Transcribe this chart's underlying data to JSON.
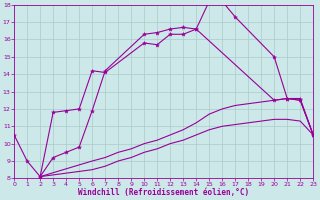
{
  "xlabel": "Windchill (Refroidissement éolien,°C)",
  "background_color": "#cce8e8",
  "grid_color": "#aacccc",
  "line_color": "#990099",
  "xlim": [
    0,
    23
  ],
  "ylim": [
    8,
    18
  ],
  "xticks": [
    0,
    1,
    2,
    3,
    4,
    5,
    6,
    7,
    8,
    9,
    10,
    11,
    12,
    13,
    14,
    15,
    16,
    17,
    18,
    19,
    20,
    21,
    22,
    23
  ],
  "yticks": [
    8,
    9,
    10,
    11,
    12,
    13,
    14,
    15,
    16,
    17,
    18
  ],
  "curve1_x": [
    0,
    1,
    2,
    3,
    4,
    5,
    6,
    7,
    10,
    11,
    12,
    13,
    14,
    15,
    16,
    17,
    20,
    21,
    22,
    23
  ],
  "curve1_y": [
    10.5,
    9.0,
    8.1,
    9.2,
    9.5,
    9.8,
    11.9,
    14.2,
    16.3,
    16.4,
    16.6,
    16.7,
    16.6,
    18.2,
    18.2,
    17.3,
    15.0,
    12.6,
    12.6,
    10.5
  ],
  "curve2_x": [
    2,
    3,
    4,
    5,
    6,
    7,
    10,
    11,
    12,
    13,
    14,
    20,
    21,
    22,
    23
  ],
  "curve2_y": [
    8.1,
    11.8,
    11.9,
    12.0,
    14.2,
    14.1,
    15.8,
    15.7,
    16.3,
    16.3,
    16.6,
    12.5,
    12.6,
    12.5,
    10.5
  ],
  "curve3_x": [
    2,
    6,
    7,
    8,
    9,
    10,
    11,
    12,
    13,
    14,
    15,
    16,
    17,
    18,
    19,
    20,
    21,
    22,
    23
  ],
  "curve3_y": [
    8.1,
    9.0,
    9.2,
    9.5,
    9.7,
    10.0,
    10.2,
    10.5,
    10.8,
    11.2,
    11.7,
    12.0,
    12.2,
    12.3,
    12.4,
    12.5,
    12.6,
    12.5,
    10.5
  ],
  "curve4_x": [
    2,
    6,
    7,
    8,
    9,
    10,
    11,
    12,
    13,
    14,
    15,
    16,
    17,
    18,
    19,
    20,
    21,
    22,
    23
  ],
  "curve4_y": [
    8.1,
    8.5,
    8.7,
    9.0,
    9.2,
    9.5,
    9.7,
    10.0,
    10.2,
    10.5,
    10.8,
    11.0,
    11.1,
    11.2,
    11.3,
    11.4,
    11.4,
    11.3,
    10.5
  ]
}
